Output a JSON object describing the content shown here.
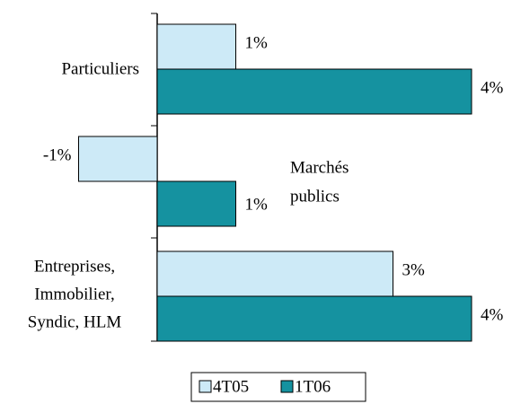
{
  "chart_data": {
    "type": "hbar",
    "categories": [
      [
        "Particuliers"
      ],
      [
        "Marchés",
        "publics"
      ],
      [
        "Entreprises,",
        "Immobilier,",
        "Syndic, HLM"
      ]
    ],
    "series": [
      {
        "name": "4T05",
        "color": "#cdeaf7",
        "values": [
          1,
          -1,
          3
        ],
        "value_labels": [
          "1%",
          "-1%",
          "3%"
        ]
      },
      {
        "name": "1T06",
        "color": "#1592a0",
        "values": [
          4,
          1,
          4
        ],
        "value_labels": [
          "4%",
          "1%",
          "4%"
        ]
      }
    ],
    "xlim": [
      -1,
      4
    ],
    "legend": "bottom"
  }
}
